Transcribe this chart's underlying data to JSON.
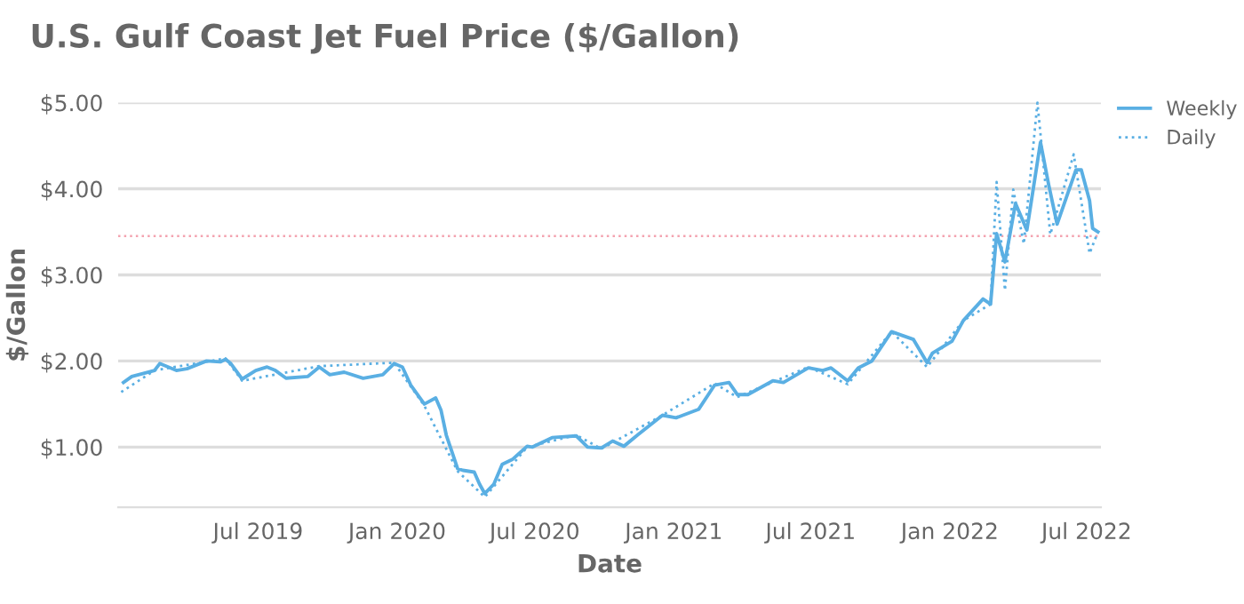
{
  "chart_data": {
    "type": "line",
    "title": "U.S. Gulf Coast Jet Fuel Price ($/Gallon)",
    "xlabel": "Date",
    "ylabel": "$/Gallon",
    "xlim": [
      "2018-12-28",
      "2022-07-20"
    ],
    "xticks": [
      {
        "value": "2019-07-01",
        "label": "Jul 2019"
      },
      {
        "value": "2020-01-01",
        "label": "Jan 2020"
      },
      {
        "value": "2020-07-01",
        "label": "Jul 2020"
      },
      {
        "value": "2021-01-01",
        "label": "Jan 2021"
      },
      {
        "value": "2021-07-01",
        "label": "Jul 2021"
      },
      {
        "value": "2022-01-01",
        "label": "Jan 2022"
      },
      {
        "value": "2022-07-01",
        "label": "Jul 2022"
      }
    ],
    "ylim": [
      0.3,
      5.0
    ],
    "yticks": [
      {
        "value": 1,
        "label": "$1.00"
      },
      {
        "value": 2,
        "label": "$2.00"
      },
      {
        "value": 3,
        "label": "$3.00"
      },
      {
        "value": 4,
        "label": "$4.00"
      },
      {
        "value": 5,
        "label": "$5.00"
      }
    ],
    "grid": "y",
    "legend": "top right",
    "ref_lines": [
      {
        "axis": "y",
        "value": 3.45,
        "color": "#f4a3b0",
        "line_style": "dotted"
      }
    ],
    "series": [
      {
        "name": "Weekly",
        "color": "#5aafe3",
        "line_style": "solid",
        "x": [
          "2019-01-04",
          "2019-01-15",
          "2019-02-14",
          "2019-02-21",
          "2019-03-15",
          "2019-03-29",
          "2019-04-24",
          "2019-05-12",
          "2019-05-19",
          "2019-05-26",
          "2019-06-10",
          "2019-06-28",
          "2019-07-13",
          "2019-07-24",
          "2019-08-07",
          "2019-09-05",
          "2019-09-20",
          "2019-10-04",
          "2019-10-23",
          "2019-11-17",
          "2019-12-13",
          "2019-12-28",
          "2020-01-08",
          "2020-01-19",
          "2020-02-06",
          "2020-02-21",
          "2020-02-28",
          "2020-03-06",
          "2020-03-21",
          "2020-03-28",
          "2020-04-12",
          "2020-04-19",
          "2020-04-26",
          "2020-05-08",
          "2020-05-19",
          "2020-06-02",
          "2020-06-21",
          "2020-06-28",
          "2020-07-24",
          "2020-08-25",
          "2020-09-09",
          "2020-09-27",
          "2020-10-12",
          "2020-10-27",
          "2020-11-14",
          "2020-12-17",
          "2021-01-04",
          "2021-02-03",
          "2021-02-24",
          "2021-03-15",
          "2021-03-26",
          "2021-04-09",
          "2021-05-12",
          "2021-05-26",
          "2021-06-28",
          "2021-07-17",
          "2021-07-28",
          "2021-08-19",
          "2021-09-02",
          "2021-09-20",
          "2021-10-16",
          "2021-11-14",
          "2021-12-02",
          "2021-12-09",
          "2022-01-04",
          "2022-01-19",
          "2022-02-14",
          "2022-02-24",
          "2022-03-04",
          "2022-03-15",
          "2022-03-29",
          "2022-04-13",
          "2022-05-01",
          "2022-05-12",
          "2022-05-23",
          "2022-06-17",
          "2022-06-24",
          "2022-07-05",
          "2022-07-09",
          "2022-07-16"
        ],
        "values": [
          1.75,
          1.82,
          1.89,
          1.97,
          1.89,
          1.91,
          2.0,
          1.99,
          2.02,
          1.97,
          1.79,
          1.89,
          1.93,
          1.89,
          1.8,
          1.82,
          1.93,
          1.84,
          1.87,
          1.8,
          1.84,
          1.97,
          1.93,
          1.72,
          1.5,
          1.57,
          1.43,
          1.14,
          0.75,
          0.73,
          0.71,
          0.57,
          0.46,
          0.57,
          0.8,
          0.86,
          1.01,
          1.0,
          1.11,
          1.13,
          1.0,
          0.99,
          1.07,
          1.01,
          1.14,
          1.37,
          1.34,
          1.44,
          1.72,
          1.75,
          1.61,
          1.61,
          1.77,
          1.75,
          1.92,
          1.89,
          1.92,
          1.77,
          1.92,
          2.0,
          2.34,
          2.25,
          1.98,
          2.09,
          2.23,
          2.47,
          2.72,
          2.66,
          3.48,
          3.15,
          3.83,
          3.52,
          4.54,
          4.04,
          3.59,
          4.22,
          4.22,
          3.86,
          3.54,
          3.5
        ]
      },
      {
        "name": "Daily",
        "color": "#5aafe3",
        "line_style": "dotted",
        "x": [
          "2019-01-01",
          "2019-02-14",
          "2019-05-19",
          "2019-06-10",
          "2019-09-20",
          "2019-12-28",
          "2020-02-06",
          "2020-03-21",
          "2020-04-26",
          "2020-06-21",
          "2020-08-25",
          "2020-09-27",
          "2020-12-17",
          "2021-02-24",
          "2021-03-26",
          "2021-06-28",
          "2021-08-19",
          "2021-10-16",
          "2021-12-02",
          "2022-01-19",
          "2022-02-24",
          "2022-03-04",
          "2022-03-15",
          "2022-03-26",
          "2022-04-09",
          "2022-04-27",
          "2022-05-14",
          "2022-06-14",
          "2022-07-05",
          "2022-07-16"
        ],
        "values": [
          1.64,
          1.89,
          2.03,
          1.77,
          1.94,
          1.98,
          1.48,
          0.72,
          0.42,
          1.0,
          1.14,
          0.98,
          1.37,
          1.74,
          1.58,
          1.93,
          1.73,
          2.34,
          1.93,
          2.47,
          2.66,
          4.08,
          2.82,
          3.99,
          3.36,
          5.0,
          3.47,
          4.4,
          3.25,
          3.5
        ]
      }
    ]
  }
}
